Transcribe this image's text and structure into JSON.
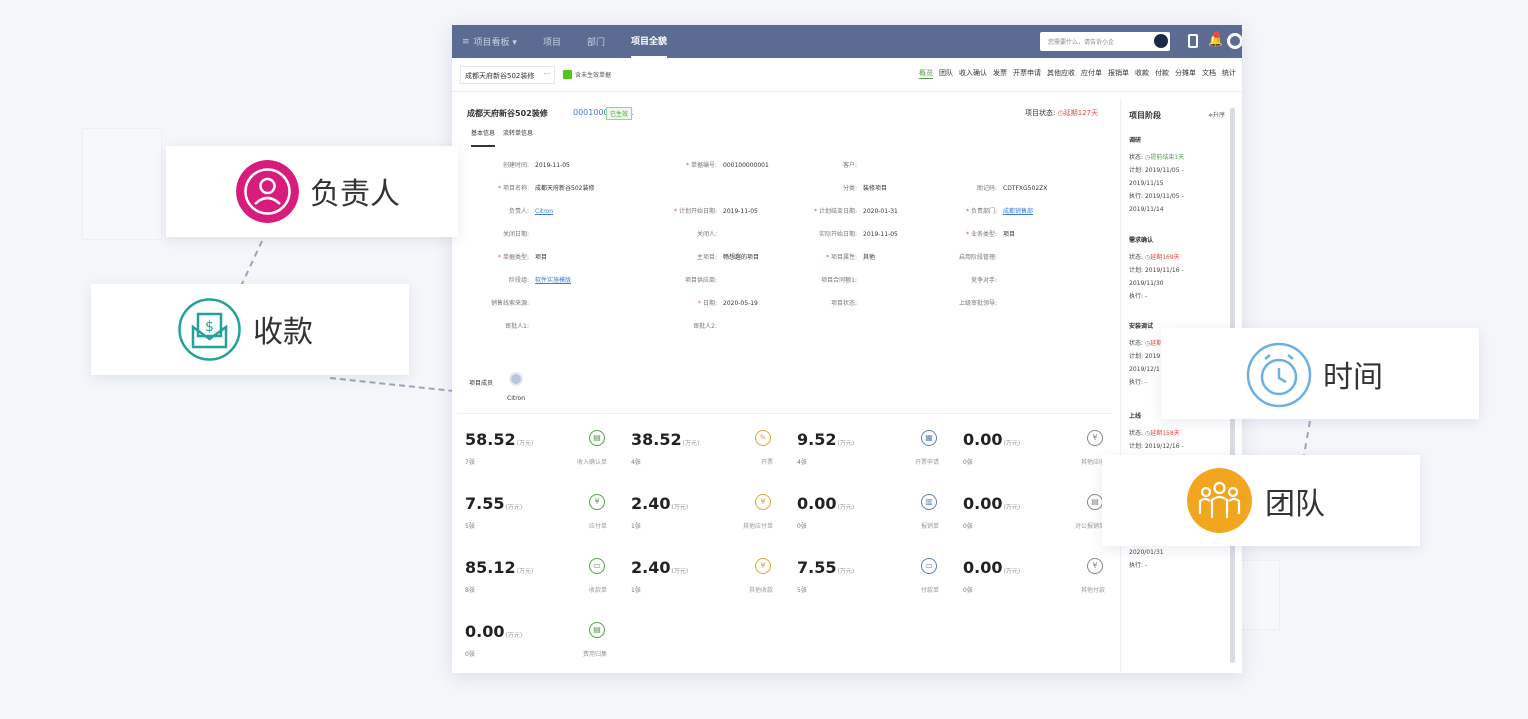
{
  "topnav": {
    "menu_icon": "≡",
    "items": [
      "项目看板 ▾",
      "项目",
      "部门",
      "项目全貌"
    ],
    "active": 3,
    "search_placeholder": "您需要什么，请告诉小企"
  },
  "subbar": {
    "project": "成都天府新谷502装修",
    "dots": "···",
    "checkbox_label": "含未生效单据",
    "tabs": [
      "概览",
      "团队",
      "收入确认",
      "发票",
      "开票申请",
      "其他应收",
      "应付单",
      "报销单",
      "收款",
      "付款",
      "分摊单",
      "文档",
      "统计"
    ]
  },
  "project": {
    "title": "成都天府新谷502装修",
    "code": "000100000001",
    "badge": "已生效",
    "status_label": "项目状态:",
    "status_value": "延期127天",
    "subtabs": [
      "基本信息",
      "流转单信息"
    ]
  },
  "fields": [
    {
      "label": "创建时间:",
      "value": "2019-11-05",
      "req": false,
      "link": false
    },
    {
      "label": "单据编号:",
      "value": "000100000001",
      "req": true,
      "link": false
    },
    {
      "label": "客户:",
      "value": "",
      "req": false,
      "link": false
    },
    {
      "label": "",
      "value": "",
      "req": false,
      "link": false
    },
    {
      "label": "项目名称:",
      "value": "成都天府新谷502装修",
      "req": true,
      "link": false
    },
    {
      "label": "",
      "value": "",
      "req": false,
      "link": false
    },
    {
      "label": "分类:",
      "value": "装修项目",
      "req": false,
      "link": false
    },
    {
      "label": "助记码:",
      "value": "CDTFXG502ZX",
      "req": false,
      "link": false
    },
    {
      "label": "负责人:",
      "value": "Citron",
      "req": false,
      "link": true
    },
    {
      "label": "计划开始日期:",
      "value": "2019-11-05",
      "req": true,
      "link": false
    },
    {
      "label": "计划结束日期:",
      "value": "2020-01-31",
      "req": true,
      "link": false
    },
    {
      "label": "负责部门:",
      "value": "成都销售部",
      "req": true,
      "link": true
    },
    {
      "label": "关闭日期:",
      "value": "",
      "req": false,
      "link": false
    },
    {
      "label": "关闭人:",
      "value": "",
      "req": false,
      "link": false
    },
    {
      "label": "实际开始日期:",
      "value": "2019-11-05",
      "req": false,
      "link": false
    },
    {
      "label": "业务类型:",
      "value": "项目",
      "req": true,
      "link": false
    },
    {
      "label": "单据类型:",
      "value": "项目",
      "req": true,
      "link": false
    },
    {
      "label": "主项目:",
      "value": "畅想趣的项目",
      "req": false,
      "link": false
    },
    {
      "label": "项目属性:",
      "value": "其他",
      "req": true,
      "link": false
    },
    {
      "label": "启用阶段管理:",
      "value": "",
      "req": false,
      "link": false
    },
    {
      "label": "阶段组:",
      "value": "软件实施模版",
      "req": false,
      "link": true
    },
    {
      "label": "项目供应商:",
      "value": "",
      "req": false,
      "link": false
    },
    {
      "label": "项目合同额1:",
      "value": "",
      "req": false,
      "link": false
    },
    {
      "label": "竞争对手:",
      "value": "",
      "req": false,
      "link": false
    },
    {
      "label": "销售线索来源:",
      "value": "",
      "req": false,
      "link": false
    },
    {
      "label": "日期:",
      "value": "2020-05-19",
      "req": true,
      "link": false
    },
    {
      "label": "项目状态:",
      "value": "",
      "req": false,
      "link": false
    },
    {
      "label": "上级审批领导:",
      "value": "",
      "req": false,
      "link": false
    },
    {
      "label": "审批人1:",
      "value": "",
      "req": false,
      "link": false
    },
    {
      "label": "审批人2:",
      "value": "",
      "req": false,
      "link": false
    }
  ],
  "members": {
    "label": "项目成员",
    "name": "Citron"
  },
  "unit": "(万元)",
  "stats": [
    {
      "value": "58.52",
      "count": "7张",
      "name": "收入确认单",
      "icon": "▤",
      "color": "#52a447"
    },
    {
      "value": "38.52",
      "count": "4张",
      "name": "开票",
      "icon": "✎",
      "color": "#e0a43a"
    },
    {
      "value": "9.52",
      "count": "4张",
      "name": "开票申请",
      "icon": "▦",
      "color": "#5b7fc7"
    },
    {
      "value": "0.00",
      "count": "0张",
      "name": "其他应收",
      "icon": "¥",
      "color": "#888888"
    },
    {
      "value": "7.55",
      "count": "5张",
      "name": "应付单",
      "icon": "¥",
      "color": "#52a447"
    },
    {
      "value": "2.40",
      "count": "1张",
      "name": "其他应付单",
      "icon": "¥",
      "color": "#e0a43a"
    },
    {
      "value": "0.00",
      "count": "0张",
      "name": "报销单",
      "icon": "▥",
      "color": "#5b7fc7"
    },
    {
      "value": "0.00",
      "count": "0张",
      "name": "对公报销单",
      "icon": "▤",
      "color": "#888888"
    },
    {
      "value": "85.12",
      "count": "8张",
      "name": "收款单",
      "icon": "▭",
      "color": "#52a447"
    },
    {
      "value": "2.40",
      "count": "1张",
      "name": "其他收款",
      "icon": "¥",
      "color": "#e0a43a"
    },
    {
      "value": "7.55",
      "count": "5张",
      "name": "付款单",
      "icon": "▭",
      "color": "#5b7fc7"
    },
    {
      "value": "0.00",
      "count": "0张",
      "name": "其他付款",
      "icon": "¥",
      "color": "#888888"
    },
    {
      "value": "0.00",
      "count": "0张",
      "name": "费用归集",
      "icon": "▤",
      "color": "#52a447"
    }
  ],
  "stages": {
    "title": "项目阶段",
    "sort": "≑升序",
    "items": [
      {
        "name": "调研",
        "lines": [
          [
            "状态:",
            "提前结束1天",
            "g"
          ],
          [
            "计划:",
            "2019/11/05 -",
            ""
          ],
          [
            "",
            "2019/11/15",
            ""
          ],
          [
            "执行:",
            "2019/11/05 -",
            ""
          ],
          [
            "",
            "2019/11/14",
            ""
          ]
        ]
      },
      {
        "name": "需求确认",
        "lines": [
          [
            "状态:",
            "延期169天",
            "r"
          ],
          [
            "计划:",
            "2019/11/16 -",
            ""
          ],
          [
            "",
            "2019/11/30",
            ""
          ],
          [
            "执行:",
            "-",
            ""
          ]
        ]
      },
      {
        "name": "安装调试",
        "lines": [
          [
            "状态:",
            "延期",
            "r"
          ],
          [
            "计划:",
            "2019",
            ""
          ],
          [
            "",
            "2019/12/1",
            ""
          ],
          [
            "执行:",
            "-",
            ""
          ]
        ]
      },
      {
        "name": "上线",
        "lines": [
          [
            "状态:",
            "延期158天",
            "r"
          ],
          [
            "计划:",
            "2019/12/16 -",
            ""
          ]
        ]
      },
      {
        "name": "",
        "lines": [
          [
            "",
            "2020/01/31",
            ""
          ],
          [
            "执行:",
            "-",
            ""
          ]
        ]
      }
    ]
  },
  "callouts": {
    "owner": "负责人",
    "payment": "收款",
    "time": "时间",
    "team": "团队"
  },
  "colors": {
    "owner_icon": "#d81b7d",
    "payment_icon": "#22a39a",
    "time_icon": "#6fb0e4",
    "team_icon": "#f2a51e",
    "nav": "#5b6b91"
  }
}
